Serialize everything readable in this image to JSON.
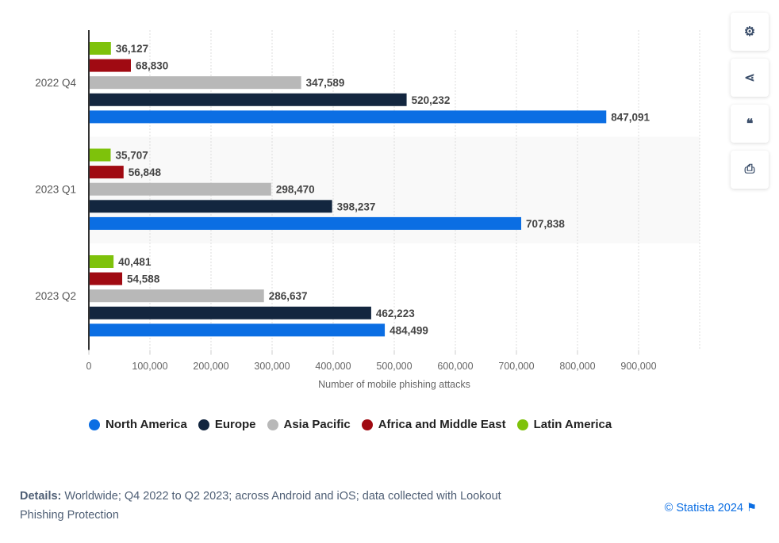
{
  "chart_data": {
    "type": "bar",
    "orientation": "horizontal",
    "categories": [
      "2022 Q4",
      "2023 Q1",
      "2023 Q2"
    ],
    "series": [
      {
        "name": "North America",
        "color": "#0b6ee3",
        "values": [
          847091,
          707838,
          484499
        ]
      },
      {
        "name": "Europe",
        "color": "#13263f",
        "values": [
          520232,
          398237,
          462223
        ]
      },
      {
        "name": "Asia Pacific",
        "color": "#b8b8b8",
        "values": [
          347589,
          298470,
          286637
        ]
      },
      {
        "name": "Africa and Middle East",
        "color": "#a00a12",
        "values": [
          68830,
          56848,
          54588
        ]
      },
      {
        "name": "Latin America",
        "color": "#7ec20b",
        "values": [
          36127,
          35707,
          40481
        ]
      }
    ],
    "xlabel": "Number of mobile phishing attacks",
    "xlim": [
      0,
      1000000
    ],
    "xticks": [
      0,
      100000,
      200000,
      300000,
      400000,
      500000,
      600000,
      700000,
      800000,
      900000
    ],
    "xtick_labels": [
      "0",
      "100,000",
      "200,000",
      "300,000",
      "400,000",
      "500,000",
      "600,000",
      "700,000",
      "800,000",
      "900,000"
    ],
    "grid": true,
    "legend": "bottom"
  },
  "sidebar": {
    "buttons": [
      {
        "icon": "gear-icon"
      },
      {
        "icon": "share-icon"
      },
      {
        "icon": "quote-icon"
      },
      {
        "icon": "print-icon"
      }
    ]
  },
  "footer": {
    "details_label": "Details:",
    "details_text": " Worldwide; Q4 2022 to Q2 2023; across Android and iOS; data collected with Lookout Phishing Protection",
    "copyright": "© Statista 2024"
  }
}
